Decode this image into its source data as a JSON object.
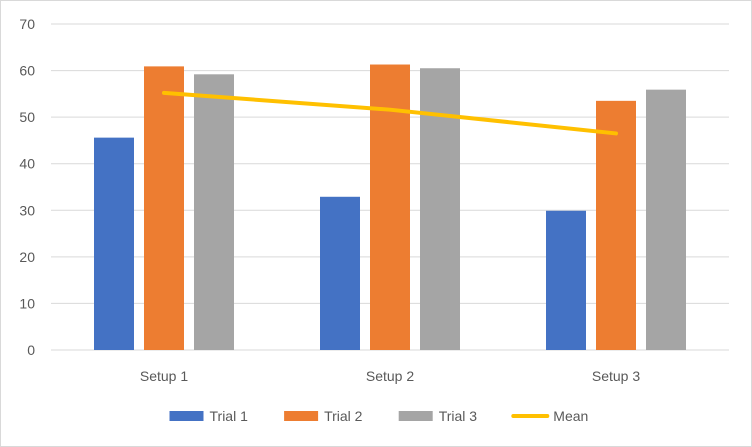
{
  "chart_data": {
    "type": "bar",
    "categories": [
      "Setup 1",
      "Setup 2",
      "Setup 3"
    ],
    "series": [
      {
        "name": "Trial 1",
        "kind": "bar",
        "color": "#4472C4",
        "values": [
          45.6,
          32.9,
          29.9
        ]
      },
      {
        "name": "Trial 2",
        "kind": "bar",
        "color": "#ED7D31",
        "values": [
          60.9,
          61.3,
          53.5
        ]
      },
      {
        "name": "Trial 3",
        "kind": "bar",
        "color": "#A5A5A5",
        "values": [
          59.2,
          60.5,
          55.9
        ]
      },
      {
        "name": "Mean",
        "kind": "line",
        "color": "#FFC000",
        "values": [
          55.2,
          51.6,
          46.5
        ]
      }
    ],
    "ylim": [
      0,
      70
    ],
    "yticks": [
      0,
      10,
      20,
      30,
      40,
      50,
      60,
      70
    ],
    "grid": true,
    "legend": "bottom"
  }
}
